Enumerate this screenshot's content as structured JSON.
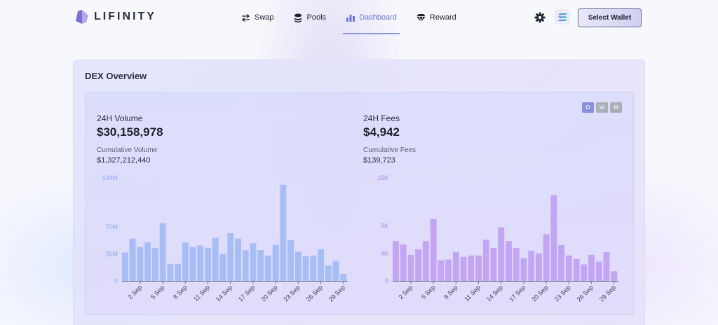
{
  "header": {
    "brand": "LIFINITY",
    "nav": [
      {
        "label": "Swap",
        "icon": "swap-arrows-icon",
        "active": false
      },
      {
        "label": "Pools",
        "icon": "coins-icon",
        "active": false
      },
      {
        "label": "Dashboard",
        "icon": "bar-chart-icon",
        "active": true
      },
      {
        "label": "Reward",
        "icon": "diamond-icon",
        "active": false
      }
    ],
    "select_wallet_label": "Select Wallet",
    "icons": [
      "gear-icon",
      "solana-icon"
    ]
  },
  "overview": {
    "title": "DEX Overview",
    "period_toggles": [
      {
        "label": "D",
        "active": true
      },
      {
        "label": "W",
        "active": false
      },
      {
        "label": "M",
        "active": false
      }
    ],
    "volume": {
      "label": "24H Volume",
      "value": "$30,158,978",
      "cumulative_label": "Cumulative Volume",
      "cumulative_value": "$1,327,212,440"
    },
    "fees": {
      "label": "24H Fees",
      "value": "$4,942",
      "cumulative_label": "Cumulative Fees",
      "cumulative_value": "$139,723"
    }
  },
  "colors": {
    "volume_bar": "#a7bdf6",
    "volume_tick": "#8eaaf0",
    "fees_bar": "#c2a6f3",
    "fees_tick": "#b08ae8",
    "accent": "#8e95e6"
  },
  "chart_data": [
    {
      "type": "bar",
      "series": [
        {
          "values": [
            37,
            55,
            44,
            50,
            43,
            75,
            22,
            22,
            50,
            44,
            46,
            43,
            56,
            35,
            62,
            55,
            40,
            49,
            40,
            33,
            47,
            125,
            53,
            38,
            32,
            33,
            41,
            20,
            26,
            9
          ]
        }
      ],
      "unit": "M",
      "ylim": [
        0,
        134
      ],
      "y_ticks": [
        "0",
        "35M",
        "70M",
        "134M"
      ],
      "y_tick_values": [
        0,
        35,
        70,
        134
      ],
      "x_ticks": [
        "2 Sep",
        "5 Sep",
        "8 Sep",
        "11 Sep",
        "14 Sep",
        "17 Sep",
        "20 Sep",
        "23 Sep",
        "26 Sep",
        "29 Sep"
      ],
      "x_tick_indices": [
        2,
        5,
        8,
        11,
        14,
        17,
        20,
        23,
        26,
        29
      ]
    },
    {
      "type": "bar",
      "series": [
        {
          "values": [
            5.8,
            5.3,
            3.8,
            4.6,
            5.8,
            9.0,
            3.0,
            3.1,
            4.2,
            3.5,
            3.7,
            3.7,
            6.0,
            4.8,
            7.8,
            5.8,
            4.8,
            3.3,
            4.4,
            4.0,
            6.8,
            12.5,
            5.2,
            3.7,
            3.2,
            2.4,
            3.8,
            2.8,
            4.2,
            1.4
          ]
        }
      ],
      "unit": "K",
      "ylim": [
        0,
        15
      ],
      "y_ticks": [
        "0",
        "4K",
        "8K",
        "15K"
      ],
      "y_tick_values": [
        0,
        4,
        8,
        15
      ],
      "x_ticks": [
        "2 Sep",
        "5 Sep",
        "8 Sep",
        "11 Sep",
        "14 Sep",
        "17 Sep",
        "20 Sep",
        "23 Sep",
        "26 Sep",
        "29 Sep"
      ],
      "x_tick_indices": [
        2,
        5,
        8,
        11,
        14,
        17,
        20,
        23,
        26,
        29
      ]
    }
  ]
}
